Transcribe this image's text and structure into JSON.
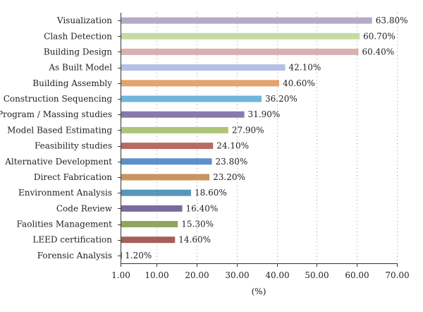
{
  "chart_data": {
    "type": "bar",
    "orientation": "horizontal",
    "title": "",
    "xlabel": "(%)",
    "ylabel": "",
    "xlim": [
      1.0,
      70.0
    ],
    "x_ticks": [
      1.0,
      10.0,
      20.0,
      30.0,
      40.0,
      50.0,
      60.0,
      70.0
    ],
    "x_tick_labels": [
      "1.00",
      "10.00",
      "20.00",
      "30.00",
      "40.00",
      "50.00",
      "60.00",
      "70.00"
    ],
    "grid": "vertical dotted",
    "legend": "none",
    "categories": [
      "Visualization",
      "Clash Detection",
      "Building Design",
      "As Built Model",
      "Building Assembly",
      "Construction Sequencing",
      "Program / Massing studies",
      "Model Based Estimating",
      "Feasibility studies",
      "Alternative Development",
      "Direct Fabrication",
      "Environment Analysis",
      "Code Review",
      "Faolities Management",
      "LEED certification",
      "Forensic Analysis"
    ],
    "values": [
      63.8,
      60.7,
      60.4,
      42.1,
      40.6,
      36.2,
      31.9,
      27.9,
      24.1,
      23.8,
      23.2,
      18.6,
      16.4,
      15.3,
      14.6,
      1.2
    ],
    "value_labels": [
      "63.80%",
      "60.70%",
      "60.40%",
      "42.10%",
      "40.60%",
      "36.20%",
      "31.90%",
      "27.90%",
      "24.10%",
      "23.80%",
      "23.20%",
      "18.60%",
      "16.40%",
      "15.30%",
      "14.60%",
      "1.20%"
    ],
    "colors": [
      "#b8a9c9",
      "#c5dba4",
      "#d9b0b0",
      "#b3c0e3",
      "#e3a36b",
      "#6fb6d8",
      "#8a78ad",
      "#b0c479",
      "#b66b67",
      "#5f8fcb",
      "#c99460",
      "#5897b8",
      "#7a6b9a",
      "#91a65e",
      "#a65e5a",
      "#4f7fbd"
    ]
  }
}
